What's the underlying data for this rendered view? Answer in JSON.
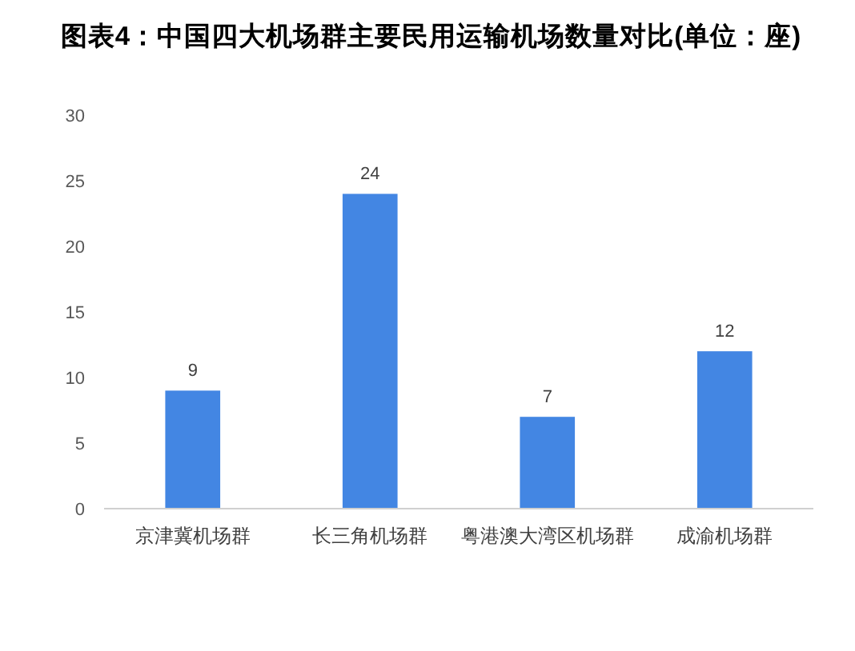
{
  "chart_data": {
    "type": "bar",
    "title": "图表4：中国四大机场群主要民用运输机场数量对比(单位：座)",
    "categories": [
      "京津冀机场群",
      "长三角机场群",
      "粤港澳大湾区机场群",
      "成渝机场群"
    ],
    "values": [
      9,
      24,
      7,
      12
    ],
    "color": "#4386e3",
    "ylim": [
      0,
      30
    ],
    "yticks": [
      0,
      5,
      10,
      15,
      20,
      25,
      30
    ],
    "data_labels": true
  }
}
